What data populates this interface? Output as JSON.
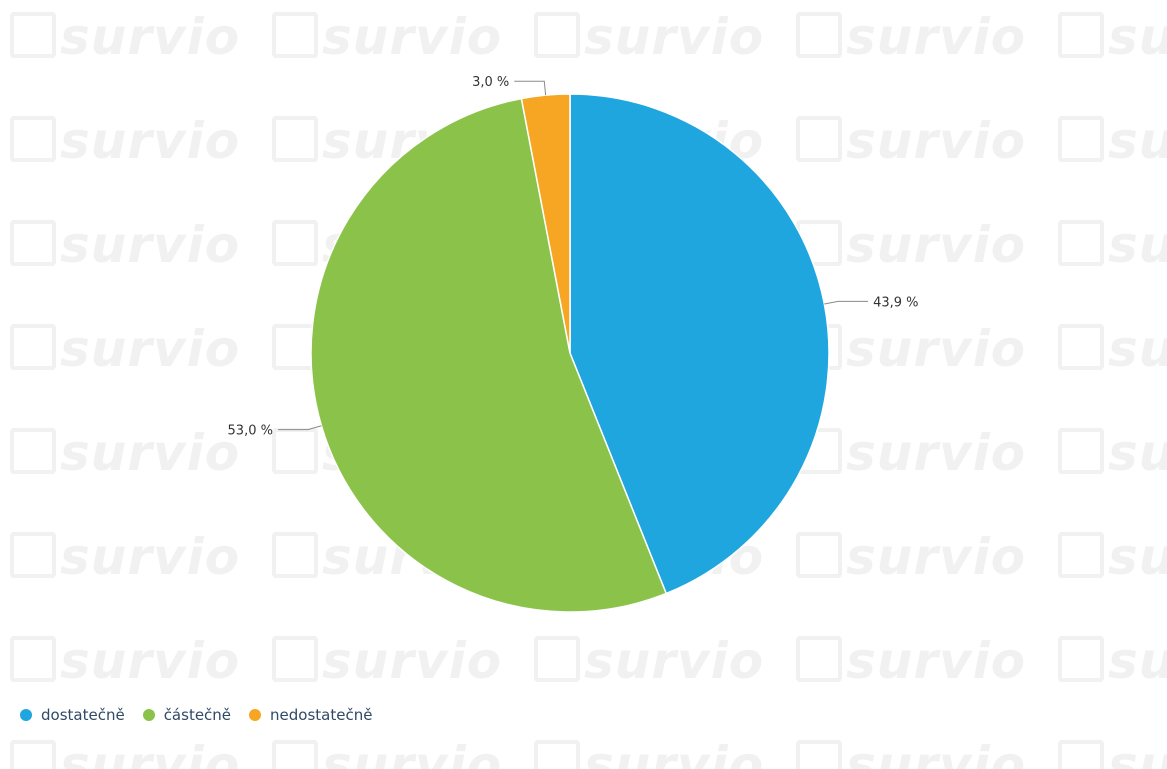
{
  "title": "",
  "watermark": {
    "text": "survio",
    "icon": "check-icon"
  },
  "colors": {
    "dostatecne": "#1fa6de",
    "castecne": "#8bc34a",
    "nedostatecne": "#f7a623",
    "watermark": "#f1f1f1",
    "legend_text": "#2f4a66"
  },
  "chart_data": {
    "type": "pie",
    "title": "",
    "slices": [
      {
        "label": "dostatečně",
        "value": 43.9,
        "display": "43,9 %",
        "color": "#1fa6de"
      },
      {
        "label": "částečně",
        "value": 53.0,
        "display": "53,0 %",
        "color": "#8bc34a"
      },
      {
        "label": "nedostatečně",
        "value": 3.0,
        "display": "3,0 %",
        "color": "#f7a623"
      }
    ],
    "start_angle_deg": 0,
    "direction": "clockwise",
    "legend_position": "bottom-left"
  },
  "legend": {
    "items": [
      {
        "label": "dostatečně",
        "color": "#1fa6de"
      },
      {
        "label": "částečně",
        "color": "#8bc34a"
      },
      {
        "label": "nedostatečně",
        "color": "#f7a623"
      }
    ]
  }
}
